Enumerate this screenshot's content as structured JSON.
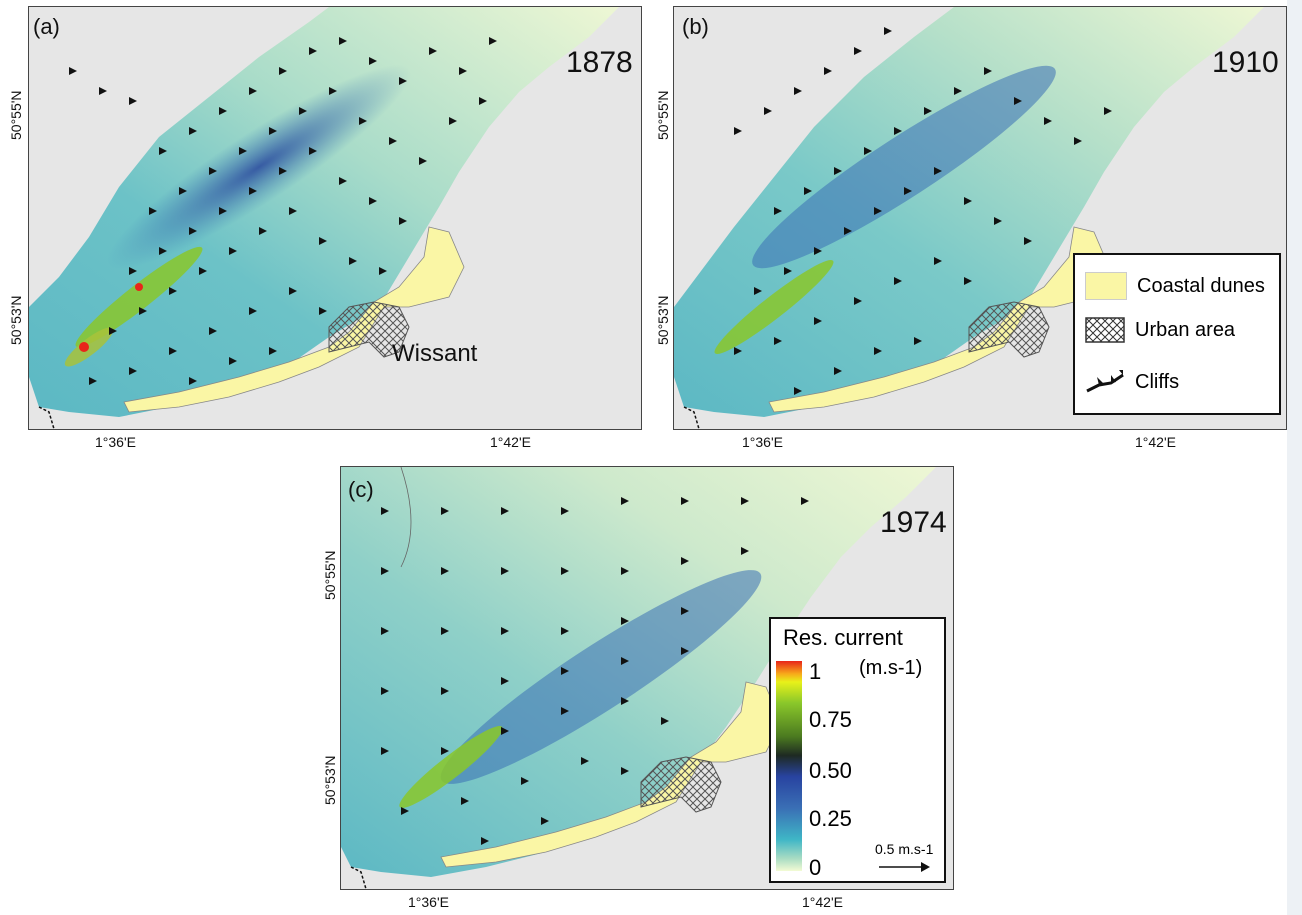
{
  "panels": [
    {
      "label": "(a)",
      "year": "1878",
      "town": "Wissant"
    },
    {
      "label": "(b)",
      "year": "1910"
    },
    {
      "label": "(c)",
      "year": "1974"
    }
  ],
  "axes": {
    "x_ticks": [
      "1°36'E",
      "1°42'E"
    ],
    "y_ticks": [
      "50°55'N",
      "50°53'N"
    ]
  },
  "legend": {
    "items": [
      {
        "label": "Coastal dunes",
        "icon": "dune-swatch"
      },
      {
        "label": "Urban area",
        "icon": "hatch-swatch"
      },
      {
        "label": "Cliffs",
        "icon": "cliff-symbol"
      }
    ]
  },
  "colorbar": {
    "title": "Res. current",
    "unit": "(m.s-1)",
    "levels": [
      "1",
      "0.75",
      "0.50",
      "0.25",
      "0"
    ],
    "arrow_label": "0.5 m.s-1"
  },
  "colors": {
    "land": "#e6e6e6",
    "dunes": "#faf6a5",
    "sea_low": "#eef7d4",
    "sea_mid": "#58b5c2",
    "sea_high": "#2d4e9f",
    "jet": "#8ac72a"
  }
}
